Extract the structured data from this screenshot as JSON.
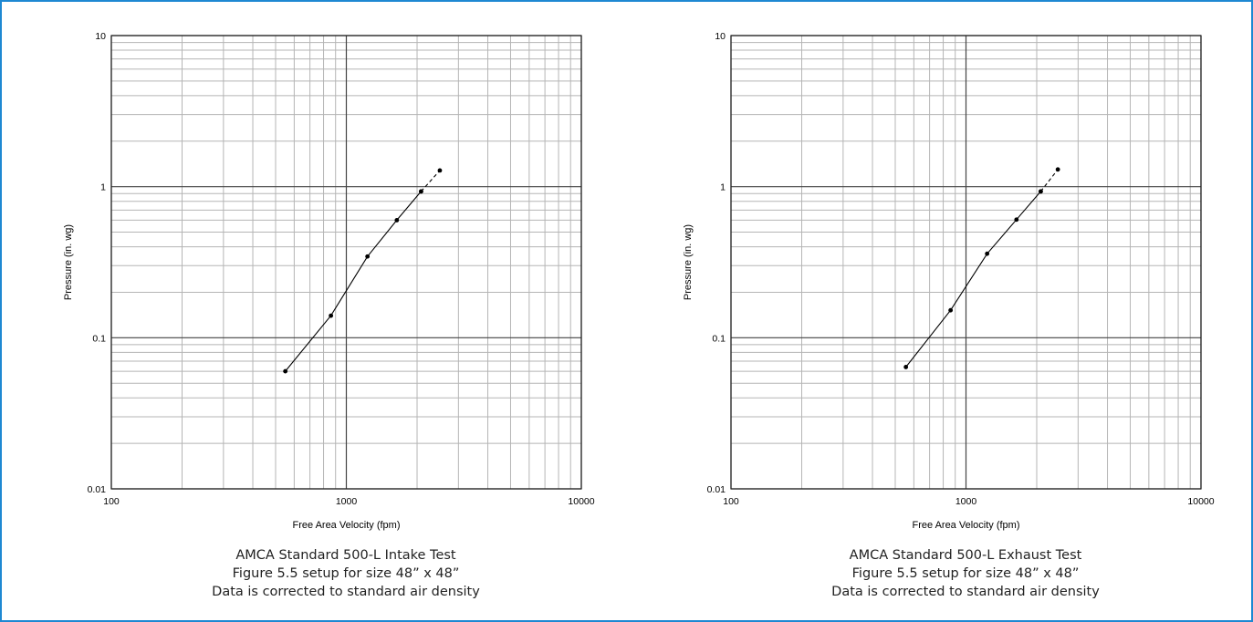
{
  "colors": {
    "frame": "#1e88d2",
    "grid": "#b5b5b5",
    "major_grid": "#444444",
    "line": "#000000"
  },
  "chart_data": [
    {
      "type": "line",
      "xlabel": "Free Area Velocity (fpm)",
      "ylabel": "Pressure (in. wg)",
      "xscale": "log",
      "yscale": "log",
      "xlim": [
        100,
        10000
      ],
      "ylim": [
        0.01,
        10
      ],
      "xticks": [
        "100",
        "1000",
        "10000"
      ],
      "yticks": [
        "0.01",
        "0.1",
        "1",
        "10"
      ],
      "grid": true,
      "series": [
        {
          "x": [
            550,
            860,
            1230,
            1640,
            2080
          ],
          "y": [
            0.06,
            0.14,
            0.345,
            0.6,
            0.93
          ],
          "style": "solid"
        },
        {
          "x": [
            2080,
            2500
          ],
          "y": [
            0.93,
            1.28
          ],
          "style": "dashed"
        }
      ],
      "caption": [
        "AMCA Standard 500-L Intake Test",
        "Figure 5.5 setup for size 48” x 48”",
        "Data is corrected to standard air density"
      ]
    },
    {
      "type": "line",
      "xlabel": "Free Area Velocity (fpm)",
      "ylabel": "Pressure (in. wg)",
      "xscale": "log",
      "yscale": "log",
      "xlim": [
        100,
        10000
      ],
      "ylim": [
        0.01,
        10
      ],
      "xticks": [
        "100",
        "1000",
        "10000"
      ],
      "yticks": [
        "0.01",
        "0.1",
        "1",
        "10"
      ],
      "grid": true,
      "series": [
        {
          "x": [
            555,
            860,
            1230,
            1640,
            2080
          ],
          "y": [
            0.064,
            0.152,
            0.36,
            0.605,
            0.93
          ],
          "style": "solid"
        },
        {
          "x": [
            2080,
            2460
          ],
          "y": [
            0.93,
            1.3
          ],
          "style": "dashed"
        }
      ],
      "caption": [
        "AMCA Standard 500-L Exhaust Test",
        "Figure 5.5 setup for size 48” x 48”",
        "Data is corrected to standard air density"
      ]
    }
  ]
}
